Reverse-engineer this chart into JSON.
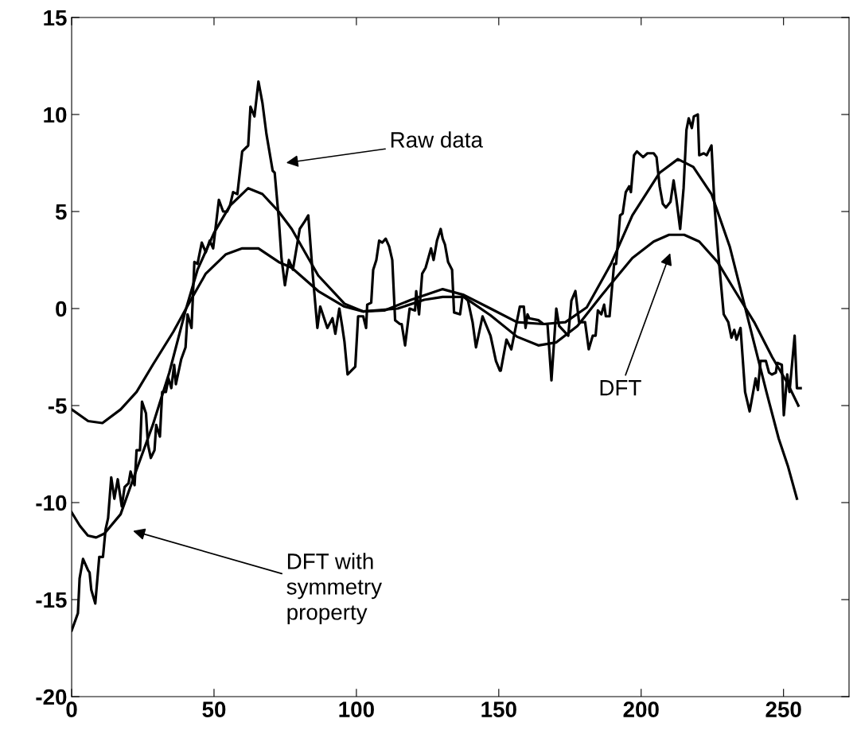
{
  "chart_data": {
    "type": "line",
    "xlim": [
      0,
      273
    ],
    "ylim": [
      -20,
      15
    ],
    "xticks": [
      0,
      50,
      100,
      150,
      200,
      250
    ],
    "yticks": [
      -20,
      -15,
      -10,
      -5,
      0,
      5,
      10,
      15
    ],
    "grid": false,
    "marker": "none",
    "line_style": "solid",
    "series": [
      {
        "color": "#000000",
        "x": [
          0,
          2.2,
          2.8,
          4,
          5.8,
          6.3,
          6.9,
          8.3,
          9.7,
          11,
          11.9,
          12.8,
          13.9,
          15,
          16.2,
          17.6,
          18.6,
          20,
          20.7,
          22.1,
          22.8,
          24,
          24.7,
          26.1,
          26.8,
          27.8,
          29.1,
          29.7,
          31,
          31.8,
          33.1,
          34,
          35,
          36,
          36.6,
          38.5,
          40,
          40.7,
          42.1,
          43.1,
          44.2,
          45.7,
          47.1,
          48.5,
          49.7,
          51.7,
          53.2,
          54.6,
          55.6,
          56.7,
          58.2,
          59.9,
          62,
          62.8,
          64.2,
          65.6,
          67,
          68.4,
          70.6,
          71.3,
          72.7,
          73.7,
          74.9,
          76.3,
          77.7,
          80.1,
          81.9,
          83.1,
          84.7,
          86.3,
          87.3,
          89.8,
          91.6,
          92.6,
          94,
          95,
          95.8,
          96.9,
          99.6,
          100.6,
          102.4,
          103.4,
          103.8,
          105.2,
          105.9,
          107,
          108,
          109.1,
          110.3,
          111.5,
          112.6,
          113.6,
          115.3,
          115.9,
          117.1,
          118.7,
          120.6,
          121,
          122,
          123.1,
          124.3,
          126.2,
          127.1,
          128.3,
          129.6,
          130.3,
          131.1,
          132.2,
          133.6,
          134.3,
          136.4,
          137.3,
          139.2,
          140.8,
          142,
          144.3,
          147.1,
          149,
          150.4,
          150.7,
          152.7,
          154.4,
          157.4,
          158.8,
          159.4,
          160.1,
          160.7,
          163.9,
          165.7,
          167.1,
          168.5,
          170.2,
          171.2,
          174.4,
          175.5,
          176.9,
          178.2,
          180.3,
          181.6,
          183,
          184,
          184.8,
          186,
          187,
          187.6,
          188.9,
          190.5,
          191.2,
          192.6,
          193.5,
          194.6,
          195.8,
          196.4,
          197.5,
          198.5,
          200.7,
          202.2,
          204.4,
          205.4,
          206.5,
          207.6,
          208.7,
          210.3,
          211.4,
          212.4,
          213.7,
          214.9,
          215.9,
          216.7,
          217.8,
          218.5,
          219.9,
          220.4,
          222,
          223,
          224.7,
          225.8,
          227.4,
          229,
          230.6,
          231.7,
          232.7,
          233.5,
          234.9,
          236.5,
          238.1,
          240.2,
          241,
          241.9,
          243.8,
          244.9,
          245.9,
          247.3,
          247.8,
          249.4,
          250.1,
          251.3,
          252.1,
          253.9,
          254.7,
          256
        ],
        "values": [
          -16.6,
          -15.7,
          -13.9,
          -12.9,
          -13.5,
          -13.6,
          -14.5,
          -15.2,
          -12.8,
          -12.8,
          -11.4,
          -10.8,
          -8.7,
          -9.8,
          -8.8,
          -10.2,
          -9.2,
          -9.0,
          -8.4,
          -9.1,
          -7.3,
          -7.3,
          -4.8,
          -5.4,
          -7.0,
          -7.7,
          -7.3,
          -6.0,
          -6.6,
          -4.3,
          -4.3,
          -3.6,
          -4.1,
          -2.9,
          -3.9,
          -2.6,
          -2.0,
          -0.3,
          -1.0,
          2.4,
          2.3,
          3.4,
          2.9,
          3.5,
          3.1,
          5.6,
          5.0,
          5.0,
          5.3,
          6.0,
          5.9,
          8.1,
          8.4,
          10.4,
          9.9,
          11.7,
          10.6,
          9.0,
          7.1,
          7.0,
          4.7,
          2.6,
          1.2,
          2.5,
          2.0,
          4.1,
          4.5,
          4.8,
          1.7,
          -1.0,
          0.1,
          -1.0,
          -0.5,
          -1.3,
          0.0,
          -0.9,
          -1.7,
          -3.4,
          -3.0,
          -0.4,
          -0.4,
          -1.0,
          0.2,
          0.3,
          2.0,
          2.5,
          3.5,
          3.4,
          3.6,
          3.2,
          2.5,
          -0.6,
          -0.8,
          -0.8,
          -1.9,
          0.0,
          -0.1,
          0.9,
          -0.3,
          1.8,
          2.1,
          3.1,
          2.5,
          3.5,
          4.1,
          3.6,
          3.3,
          2.4,
          2.0,
          -0.2,
          -0.3,
          0.7,
          0.4,
          -0.7,
          -2.0,
          -0.4,
          -1.4,
          -2.7,
          -3.2,
          -3.2,
          -1.6,
          -2.1,
          0.1,
          0.1,
          -1.0,
          -0.3,
          -0.5,
          -0.6,
          -0.8,
          -0.8,
          -3.7,
          0.0,
          -0.9,
          -1.4,
          0.4,
          0.9,
          -0.7,
          -0.7,
          -2.1,
          -1.4,
          -1.4,
          -0.1,
          -0.3,
          0.2,
          -0.4,
          -0.4,
          2.3,
          2.3,
          4.8,
          4.9,
          6.0,
          6.3,
          6.0,
          7.9,
          8.1,
          7.8,
          8.0,
          8.0,
          7.8,
          6.3,
          5.4,
          5.2,
          5.5,
          6.6,
          5.6,
          4.1,
          6.2,
          9.2,
          9.8,
          9.3,
          9.9,
          10.0,
          7.9,
          8.0,
          7.9,
          8.4,
          5.2,
          2.3,
          -0.3,
          -0.7,
          -1.5,
          -1.1,
          -1.6,
          -1.0,
          -4.3,
          -5.3,
          -3.6,
          -4.2,
          -2.7,
          -2.7,
          -3.3,
          -3.4,
          -3.3,
          -2.8,
          -2.9,
          -5.5,
          -3.4,
          -4.3,
          -1.4,
          -4.1,
          -4.1
        ]
      },
      {
        "color": "#000000",
        "x": [
          0,
          2.9,
          5.7,
          8.6,
          11.5,
          17.2,
          22.8,
          28.5,
          34.3,
          40,
          44.2,
          50,
          55.6,
          62,
          67,
          72.7,
          77.3,
          86.6,
          95.8,
          102.4,
          109.8,
          119.2,
          130.3,
          137.7,
          147.1,
          156.4,
          165.7,
          173.4,
          180.9,
          189.4,
          196.9,
          206.5,
          212.9,
          218.3,
          224.7,
          231.1,
          235.4,
          239.7,
          244,
          248.3,
          251.5,
          254.7
        ],
        "values": [
          -10.5,
          -11.2,
          -11.7,
          -11.8,
          -11.6,
          -10.6,
          -8.3,
          -6.0,
          -3.3,
          -0.1,
          2.0,
          3.9,
          5.3,
          6.2,
          5.9,
          5.0,
          4.1,
          1.7,
          0.25,
          -0.15,
          -0.1,
          0.45,
          1.0,
          0.7,
          0.0,
          -0.7,
          -0.8,
          -0.7,
          0.06,
          2.3,
          4.8,
          7.0,
          7.7,
          7.3,
          5.9,
          3.2,
          0.7,
          -1.8,
          -4.3,
          -6.7,
          -8.1,
          -9.8
        ]
      },
      {
        "color": "#000000",
        "x": [
          0,
          5.8,
          10.8,
          17.2,
          22.8,
          28.5,
          35.7,
          41.3,
          47.1,
          54.2,
          59.9,
          65.6,
          72.7,
          77.3,
          86.6,
          95.8,
          102.4,
          114.5,
          123.8,
          130.3,
          137.7,
          147.1,
          156.4,
          163.9,
          170.1,
          177.6,
          186.2,
          196.9,
          204.4,
          209.8,
          215.1,
          220.4,
          226.8,
          233.2,
          239.7,
          246,
          251.4,
          255.2
        ],
        "values": [
          -5.2,
          -5.8,
          -5.9,
          -5.2,
          -4.3,
          -2.9,
          -1.2,
          0.3,
          1.8,
          2.8,
          3.1,
          3.1,
          2.4,
          2.1,
          0.9,
          0.1,
          -0.15,
          0.0,
          0.45,
          0.6,
          0.6,
          -0.35,
          -1.45,
          -1.9,
          -1.75,
          -0.9,
          0.7,
          2.6,
          3.45,
          3.8,
          3.8,
          3.45,
          2.4,
          0.85,
          -0.7,
          -2.5,
          -3.85,
          -5.0
        ]
      }
    ],
    "annotations": [
      "Raw data",
      "DFT",
      "DFT with\nsymmetry\nproperty"
    ]
  }
}
